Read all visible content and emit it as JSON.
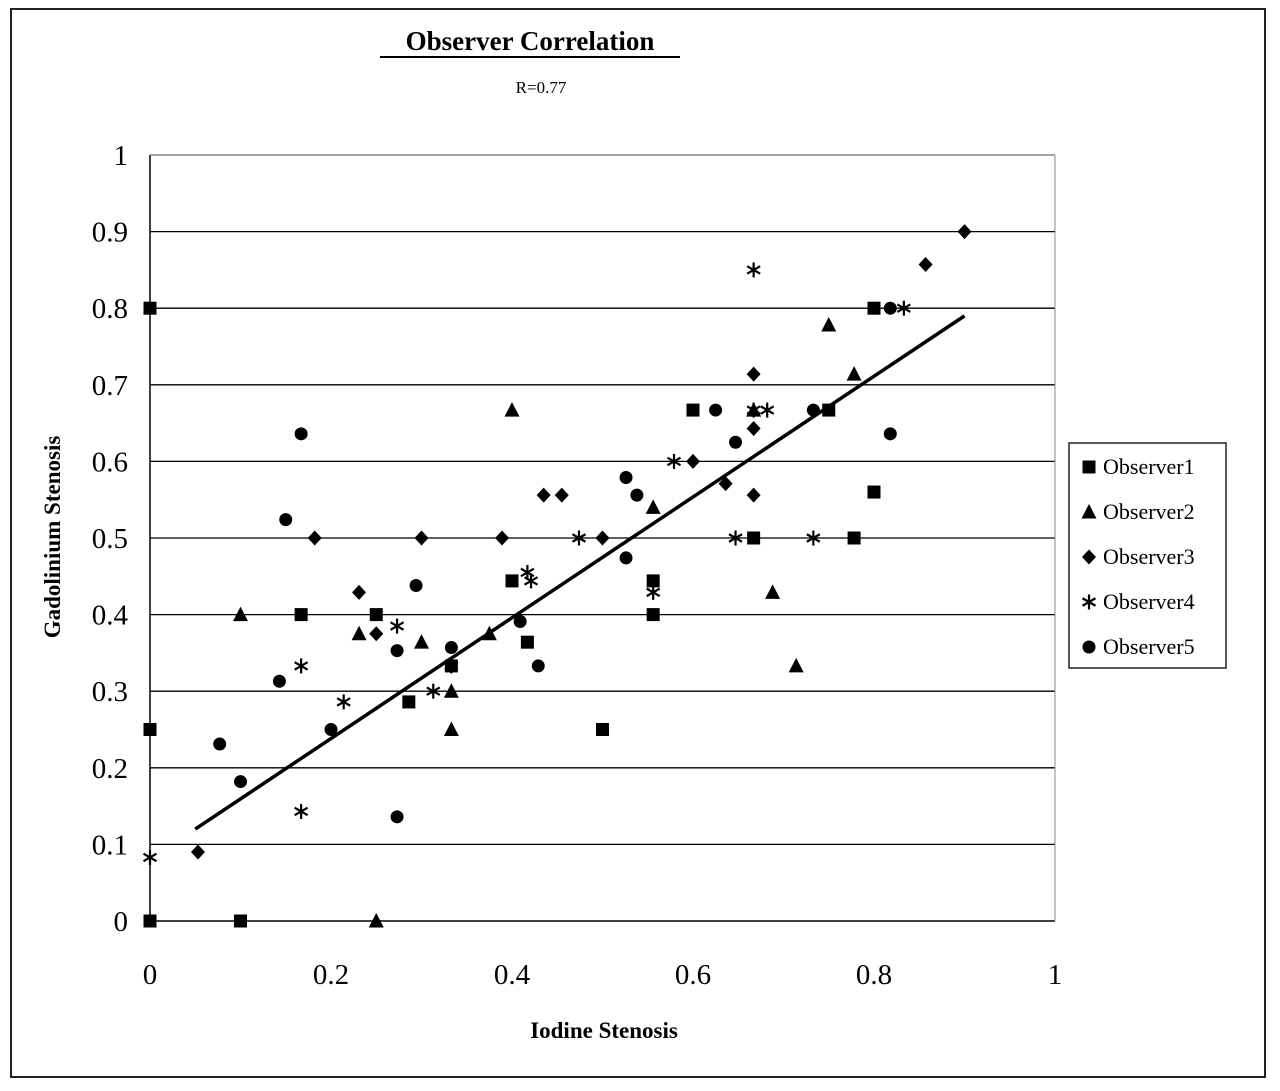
{
  "chart_data": {
    "type": "scatter",
    "title": "Observer Correlation",
    "subtitle": "R=0.77",
    "xlabel": "Iodine Stenosis",
    "ylabel": "Gadolinium Stenosis",
    "xlim": [
      0,
      1
    ],
    "ylim": [
      0,
      1
    ],
    "xticks": [
      "0",
      "0.2",
      "0.4",
      "0.6",
      "0.8",
      "1"
    ],
    "yticks": [
      "0",
      "0.1",
      "0.2",
      "0.3",
      "0.4",
      "0.5",
      "0.6",
      "0.7",
      "0.8",
      "0.9",
      "1"
    ],
    "grid": "horizontal",
    "legend_position": "right",
    "trendline": {
      "x": [
        0.05,
        0.9
      ],
      "y": [
        0.12,
        0.79
      ]
    },
    "series": [
      {
        "name": "Observer1",
        "marker": "square",
        "points": [
          [
            0,
            0.8
          ],
          [
            0,
            0.25
          ],
          [
            0,
            0
          ],
          [
            0.1,
            0
          ],
          [
            0.167,
            0.4
          ],
          [
            0.25,
            0.4
          ],
          [
            0.286,
            0.286
          ],
          [
            0.333,
            0.333
          ],
          [
            0.4,
            0.444
          ],
          [
            0.417,
            0.364
          ],
          [
            0.5,
            0.25
          ],
          [
            0.556,
            0.444
          ],
          [
            0.556,
            0.4
          ],
          [
            0.6,
            0.667
          ],
          [
            0.667,
            0.5
          ],
          [
            0.75,
            0.667
          ],
          [
            0.778,
            0.5
          ],
          [
            0.8,
            0.8
          ],
          [
            0.8,
            0.56
          ]
        ]
      },
      {
        "name": "Observer2",
        "marker": "triangle",
        "points": [
          [
            0.1,
            0.4
          ],
          [
            0.231,
            0.375
          ],
          [
            0.25,
            0
          ],
          [
            0.3,
            0.364
          ],
          [
            0.333,
            0.3
          ],
          [
            0.333,
            0.25
          ],
          [
            0.375,
            0.375
          ],
          [
            0.4,
            0.667
          ],
          [
            0.556,
            0.54
          ],
          [
            0.667,
            0.667
          ],
          [
            0.688,
            0.429
          ],
          [
            0.714,
            0.333
          ],
          [
            0.75,
            0.778
          ],
          [
            0.778,
            0.714
          ]
        ]
      },
      {
        "name": "Observer3",
        "marker": "diamond",
        "points": [
          [
            0.053,
            0.09
          ],
          [
            0.182,
            0.5
          ],
          [
            0.231,
            0.429
          ],
          [
            0.25,
            0.375
          ],
          [
            0.3,
            0.5
          ],
          [
            0.389,
            0.5
          ],
          [
            0.435,
            0.556
          ],
          [
            0.455,
            0.556
          ],
          [
            0.5,
            0.5
          ],
          [
            0.6,
            0.6
          ],
          [
            0.636,
            0.571
          ],
          [
            0.667,
            0.714
          ],
          [
            0.667,
            0.643
          ],
          [
            0.667,
            0.556
          ],
          [
            0.857,
            0.857
          ],
          [
            0.9,
            0.9
          ]
        ]
      },
      {
        "name": "Observer4",
        "marker": "asterisk",
        "points": [
          [
            0,
            0.083
          ],
          [
            0.167,
            0.333
          ],
          [
            0.167,
            0.143
          ],
          [
            0.214,
            0.286
          ],
          [
            0.273,
            0.385
          ],
          [
            0.313,
            0.3
          ],
          [
            0.333,
            0.333
          ],
          [
            0.417,
            0.455
          ],
          [
            0.421,
            0.444
          ],
          [
            0.474,
            0.5
          ],
          [
            0.556,
            0.429
          ],
          [
            0.579,
            0.6
          ],
          [
            0.647,
            0.5
          ],
          [
            0.667,
            0.85
          ],
          [
            0.667,
            0.667
          ],
          [
            0.682,
            0.667
          ],
          [
            0.733,
            0.5
          ],
          [
            0.833,
            0.8
          ]
        ]
      },
      {
        "name": "Observer5",
        "marker": "circle",
        "points": [
          [
            0.077,
            0.231
          ],
          [
            0.1,
            0.182
          ],
          [
            0.143,
            0.313
          ],
          [
            0.15,
            0.524
          ],
          [
            0.167,
            0.636
          ],
          [
            0.2,
            0.25
          ],
          [
            0.273,
            0.136
          ],
          [
            0.273,
            0.353
          ],
          [
            0.294,
            0.438
          ],
          [
            0.333,
            0.357
          ],
          [
            0.409,
            0.391
          ],
          [
            0.429,
            0.333
          ],
          [
            0.526,
            0.474
          ],
          [
            0.526,
            0.579
          ],
          [
            0.538,
            0.556
          ],
          [
            0.625,
            0.667
          ],
          [
            0.647,
            0.625
          ],
          [
            0.733,
            0.667
          ],
          [
            0.818,
            0.8
          ],
          [
            0.818,
            0.636
          ]
        ]
      }
    ]
  }
}
